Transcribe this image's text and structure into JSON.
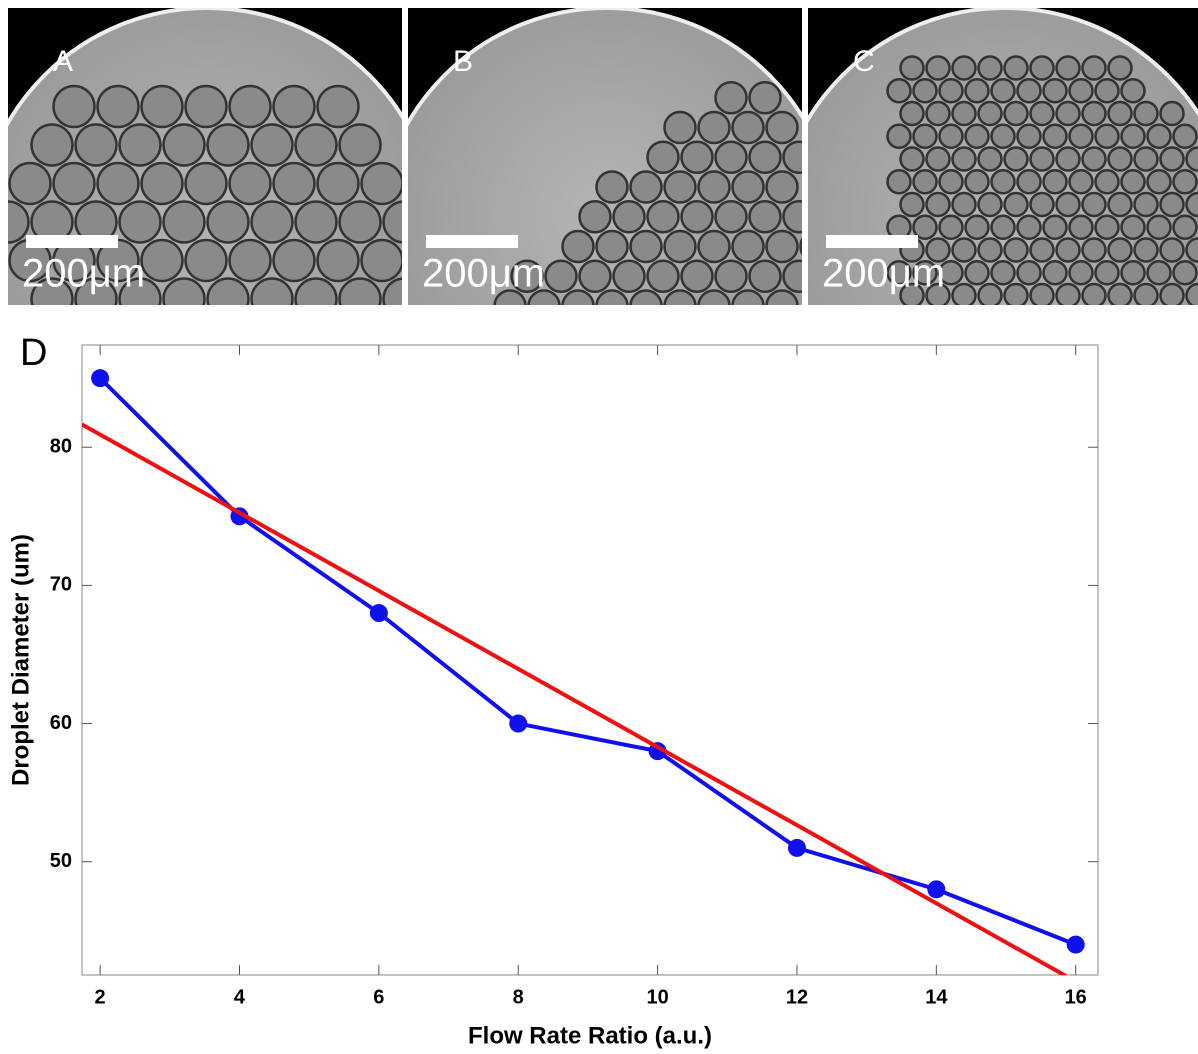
{
  "panels": [
    {
      "label": "A",
      "scale_bar": "200μm"
    },
    {
      "label": "B",
      "scale_bar": "200μm"
    },
    {
      "label": "C",
      "scale_bar": "200μm"
    }
  ],
  "chart_data": {
    "type": "line",
    "panel_label": "D",
    "x_label": "Flow Rate Ratio (a.u.)",
    "y_label": "Droplet Diameter (um)",
    "series": [
      {
        "color": "#1010ee",
        "markers": true,
        "x": [
          2,
          4,
          6,
          8,
          10,
          12,
          14,
          16
        ],
        "values": [
          85,
          75,
          68,
          60,
          58,
          51,
          48,
          44
        ]
      },
      {
        "color": "#ee1111",
        "markers": false,
        "x": [
          1.74,
          15.86
        ],
        "values": [
          81.65,
          41.73
        ]
      }
    ],
    "xlim": [
      1.74,
      16.32
    ],
    "ylim": [
      41.8,
      87.4
    ],
    "xticks": [
      2,
      4,
      6,
      8,
      10,
      12,
      14,
      16
    ],
    "yticks": [
      50,
      60,
      70,
      80
    ]
  }
}
